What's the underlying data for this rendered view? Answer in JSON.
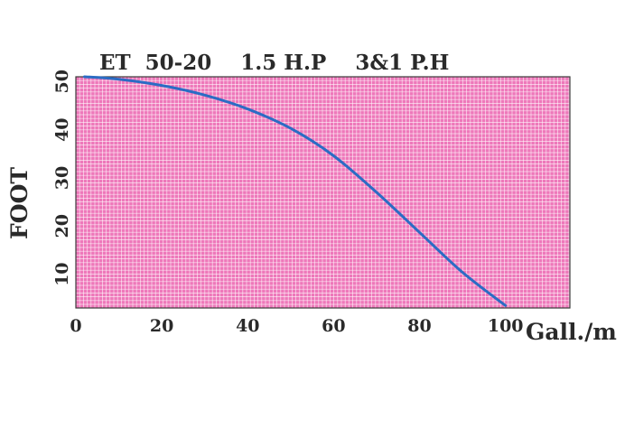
{
  "chart_data": {
    "type": "line",
    "title": "ET  50-20    1.5 H.P    3&1 P.H",
    "xlabel": "Gall./m",
    "ylabel": "FOOT",
    "xlim": [
      0,
      115
    ],
    "ylim": [
      3,
      51
    ],
    "x_ticks": [
      0,
      20,
      40,
      60,
      80,
      100
    ],
    "y_ticks": [
      10,
      20,
      30,
      40,
      50
    ],
    "grid": true,
    "colors": {
      "plot_background": "#ee78ba",
      "grid_lines": "#ffffff",
      "curve": "#2b6cc4",
      "frame": "#3a3a3a"
    },
    "series": [
      {
        "x": [
          2,
          10,
          20,
          30,
          40,
          50,
          60,
          70,
          80,
          90,
          100
        ],
        "y": [
          51,
          50.5,
          49.2,
          47.2,
          44.3,
          40.3,
          34.6,
          27.0,
          18.7,
          10.4,
          3.5
        ]
      }
    ]
  }
}
